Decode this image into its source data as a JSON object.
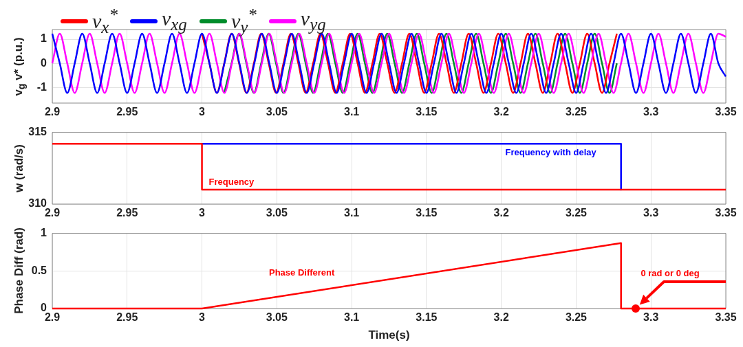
{
  "chart_data": [
    {
      "type": "line",
      "ylabel": "v$_{g}$ v* (p.u.)",
      "legend": "top",
      "grid": true,
      "xlim": [
        2.9,
        3.35
      ],
      "xticks": [
        2.9,
        2.95,
        3,
        3.05,
        3.1,
        3.15,
        3.2,
        3.25,
        3.3,
        3.35
      ],
      "ylim": [
        -1.65,
        1.4
      ],
      "yticks": [
        -1,
        0,
        1
      ],
      "x": [
        2.9,
        2.905,
        2.91,
        2.915,
        2.92,
        2.925,
        2.93,
        2.935,
        2.94,
        2.945,
        2.95,
        2.955,
        2.96,
        2.965,
        2.97,
        2.975,
        2.98,
        2.985,
        2.99,
        2.995,
        3,
        3.005,
        3.01,
        3.015,
        3.02,
        3.025,
        3.03,
        3.035,
        3.04,
        3.045,
        3.05,
        3.055,
        3.06,
        3.065,
        3.07,
        3.075,
        3.08,
        3.085,
        3.09,
        3.095,
        3.1,
        3.105,
        3.11,
        3.115,
        3.12,
        3.125,
        3.13,
        3.135,
        3.14,
        3.145,
        3.15,
        3.155,
        3.16,
        3.165,
        3.17,
        3.175,
        3.18,
        3.185,
        3.19,
        3.195,
        3.2,
        3.205,
        3.21,
        3.215,
        3.22,
        3.225,
        3.23,
        3.235,
        3.24,
        3.245,
        3.25,
        3.255,
        3.26,
        3.265,
        3.27,
        3.275,
        3.28,
        3.285,
        3.29,
        3.295,
        3.3,
        3.305,
        3.31,
        3.315,
        3.32,
        3.325,
        3.33,
        3.335,
        3.34,
        3.345,
        3.35
      ],
      "series": [
        {
          "name": "v$_{x}$$^{*}$",
          "color": "#ff0000",
          "x": [
            3,
            3.005,
            3.0099,
            3.0149,
            3.0198,
            3.0248,
            3.0297,
            3.0347,
            3.0396,
            3.0446,
            3.0495,
            3.0545,
            3.0594,
            3.0644,
            3.0693,
            3.0743,
            3.0792,
            3.0842,
            3.0891,
            3.0941,
            3.099,
            3.104,
            3.1089,
            3.1139,
            3.1188,
            3.1238,
            3.1287,
            3.1337,
            3.1386,
            3.1436,
            3.1485,
            3.1535,
            3.1584,
            3.1634,
            3.1683,
            3.1733,
            3.1782,
            3.1832,
            3.1881,
            3.1931,
            3.198,
            3.203,
            3.2079,
            3.2129,
            3.2178,
            3.2228,
            3.2277,
            3.2327,
            3.2376,
            3.2426,
            3.2475,
            3.2525,
            3.2574,
            3.2624,
            3.2673,
            3.2723,
            3.2772
          ],
          "values": [
            1.23,
            0,
            -1.23,
            0,
            1.23,
            0,
            -1.23,
            0,
            1.23,
            0,
            -1.23,
            0,
            1.23,
            0,
            -1.23,
            0,
            1.23,
            0,
            -1.23,
            0,
            1.23,
            0,
            -1.23,
            0,
            1.23,
            0,
            -1.23,
            0,
            1.23,
            0,
            -1.23,
            0,
            1.23,
            0,
            -1.23,
            0,
            1.23,
            0,
            -1.23,
            0,
            1.23,
            0,
            -1.23,
            0,
            1.23,
            0,
            -1.23,
            0,
            1.23,
            0,
            -1.23,
            0,
            1.23,
            0,
            -1.23,
            0,
            1.23
          ]
        },
        {
          "name": "v$_{xg}$",
          "color": "#0000ff",
          "values": [
            1.23,
            0,
            -1.23,
            0,
            1.23,
            0,
            -1.23,
            0,
            1.23,
            0,
            -1.23,
            0,
            1.23,
            0,
            -1.23,
            0,
            1.23,
            0,
            -1.23,
            0,
            1.23,
            0,
            -1.23,
            0,
            1.23,
            0,
            -1.23,
            0,
            1.23,
            0,
            -1.23,
            0,
            1.23,
            0,
            -1.23,
            0,
            1.23,
            0,
            -1.23,
            0,
            1.23,
            0,
            -1.23,
            0,
            1.23,
            0,
            -1.23,
            0,
            1.23,
            0,
            -1.23,
            0,
            1.23,
            0,
            -1.23,
            0,
            1.23,
            0,
            -1.23,
            0,
            1.23,
            0,
            -1.23,
            0,
            1.23,
            0,
            -1.23,
            0,
            1.23,
            0,
            -1.23,
            0,
            1.23,
            0,
            -1.23,
            0,
            1.23,
            0,
            -1.23,
            0,
            1.23,
            0,
            -1.23,
            0,
            1.23,
            0,
            -1.23,
            0,
            1.23,
            0,
            -0.55
          ]
        },
        {
          "name": "v$_{y}$$^{*}$",
          "color": "#008c2a",
          "x": [
            3.0149,
            3.0198,
            3.0248,
            3.0297,
            3.0347,
            3.0396,
            3.0446,
            3.0495,
            3.0545,
            3.0594,
            3.0644,
            3.0693,
            3.0743,
            3.0792,
            3.0842,
            3.0891,
            3.0941,
            3.099,
            3.104,
            3.1089,
            3.1139,
            3.1188,
            3.1238,
            3.1287,
            3.1337,
            3.1386,
            3.1436,
            3.1485,
            3.1535,
            3.1584,
            3.1634,
            3.1683,
            3.1733,
            3.1782,
            3.1832,
            3.1881,
            3.1931,
            3.198,
            3.203,
            3.2079,
            3.2129,
            3.2178,
            3.2228,
            3.2277,
            3.2327,
            3.2376,
            3.2426,
            3.2475,
            3.2525,
            3.2574,
            3.2624,
            3.2673,
            3.2723,
            3.2772
          ],
          "values": [
            -1.23,
            0,
            1.23,
            0,
            -1.23,
            0,
            1.23,
            0,
            -1.23,
            0,
            1.23,
            0,
            -1.23,
            0,
            1.23,
            0,
            -1.23,
            0,
            1.23,
            0,
            -1.23,
            0,
            1.23,
            0,
            -1.23,
            0,
            1.23,
            0,
            -1.23,
            0,
            1.23,
            0,
            -1.23,
            0,
            1.23,
            0,
            -1.23,
            0,
            1.23,
            0,
            -1.23,
            0,
            1.23,
            0,
            -1.23,
            0,
            1.23,
            0,
            -1.23,
            0,
            1.23,
            0,
            -1.23,
            0
          ]
        },
        {
          "name": "v$_{yg}$",
          "color": "#ff00ff",
          "values": [
            0,
            1.23,
            0,
            -1.23,
            0,
            1.23,
            0,
            -1.23,
            0,
            1.23,
            0,
            -1.23,
            0,
            1.23,
            0,
            -1.23,
            0,
            1.23,
            0,
            -1.23,
            0,
            1.23,
            0,
            -1.23,
            0,
            1.23,
            0,
            -1.23,
            0,
            1.23,
            0,
            -1.23,
            0,
            1.23,
            0,
            -1.23,
            0,
            1.23,
            0,
            -1.23,
            0,
            1.23,
            0,
            -1.23,
            0,
            1.23,
            0,
            -1.23,
            0,
            1.23,
            0,
            -1.23,
            0,
            1.23,
            0,
            -1.23,
            0,
            1.23,
            0,
            -1.23,
            0,
            1.23,
            0,
            -1.23,
            0,
            1.23,
            0,
            -1.23,
            0,
            1.23,
            0,
            -1.23,
            0,
            1.23,
            0,
            -1.23,
            0,
            1.23,
            0,
            -1.23,
            0,
            1.23,
            0,
            -1.23,
            0,
            1.23,
            0,
            -1.23,
            0,
            1.23,
            1.1
          ]
        }
      ]
    },
    {
      "type": "line",
      "ylabel": "w (rad/s)",
      "grid": true,
      "xlim": [
        2.9,
        3.35
      ],
      "xticks": [
        2.9,
        2.95,
        3,
        3.05,
        3.1,
        3.15,
        3.2,
        3.25,
        3.3,
        3.35
      ],
      "ylim": [
        310,
        315
      ],
      "yticks": [
        310,
        315
      ],
      "annotations": [
        {
          "text": "Frequency",
          "x": 3,
          "y": 311
        },
        {
          "text": "Frequency with delay",
          "x": 3.28,
          "y": 314.2
        }
      ],
      "series": [
        {
          "color": "#ff0000",
          "x": [
            2.9,
            3,
            3,
            3.35
          ],
          "values": [
            314.2,
            314.2,
            311,
            311
          ]
        },
        {
          "color": "#0000ff",
          "x": [
            3,
            3.28,
            3.28
          ],
          "values": [
            314.2,
            314.2,
            311
          ]
        }
      ]
    },
    {
      "type": "line",
      "xlabel": "Time(s)",
      "ylabel": "Phase Diff (rad)",
      "grid": true,
      "xlim": [
        2.9,
        3.35
      ],
      "xticks": [
        2.9,
        2.95,
        3,
        3.05,
        3.1,
        3.15,
        3.2,
        3.25,
        3.3,
        3.35
      ],
      "ylim": [
        0,
        1
      ],
      "yticks": [
        0,
        0.5,
        1
      ],
      "annotations": [
        {
          "text": "Phase Different",
          "x": 3.0667,
          "y": 0.21
        },
        "0 rad or 0 deg"
      ],
      "series": [
        {
          "color": "#ff0000",
          "x": [
            2.9,
            3,
            3.28,
            3.28,
            3.35
          ],
          "values": [
            0,
            0,
            0.87,
            0,
            0
          ]
        }
      ]
    }
  ]
}
